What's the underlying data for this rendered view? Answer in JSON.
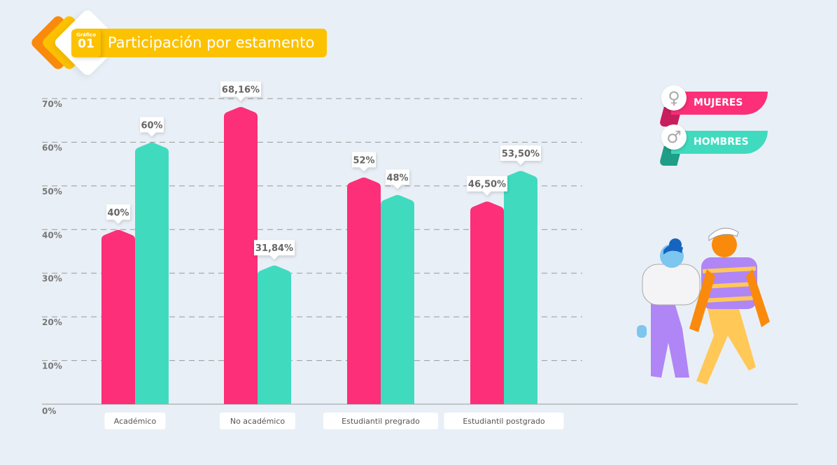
{
  "header": {
    "badge_label": "Gráfico",
    "badge_number": "01",
    "title": "Participación por estamento"
  },
  "legend": [
    {
      "label": "MUJERES",
      "icon": "female-symbol-icon",
      "color": "#fc2f78"
    },
    {
      "label": "HOMBRES",
      "icon": "male-symbol-icon",
      "color": "#40dbbf"
    }
  ],
  "chart_data": {
    "type": "bar",
    "title": "Participación por estamento",
    "categories": [
      "Académico",
      "No académico",
      "Estudiantil pregrado",
      "Estudiantil postgrado"
    ],
    "series": [
      {
        "name": "MUJERES",
        "color": "#fc2f78",
        "values": [
          40,
          68.16,
          52,
          46.5
        ],
        "labels": [
          "40%",
          "68,16%",
          "52%",
          "46,50%"
        ]
      },
      {
        "name": "HOMBRES",
        "color": "#40dbbf",
        "values": [
          60,
          31.84,
          48,
          53.5
        ],
        "labels": [
          "60%",
          "31,84%",
          "48%",
          "53,50%"
        ]
      }
    ],
    "yticks": [
      0,
      10,
      20,
      30,
      40,
      50,
      60,
      70
    ],
    "ytick_labels": [
      "0%",
      "10%",
      "20%",
      "30%",
      "40%",
      "50%",
      "60%",
      "70%"
    ],
    "ylim": [
      0,
      70
    ],
    "grid": true,
    "legend_position": "top-right"
  }
}
